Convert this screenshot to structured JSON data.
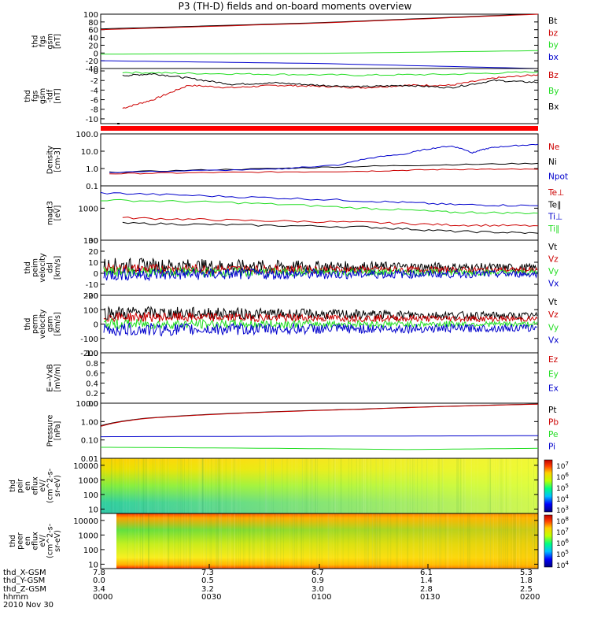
{
  "title": "P3 (TH-D) fields and on-board moments overview",
  "date_label": "2010 Nov 30",
  "colors": {
    "black": "#000000",
    "red": "#cc0000",
    "green": "#22dd22",
    "blue": "#0000cc"
  },
  "chart_data": [
    {
      "id": "fgs_gsm",
      "type": "line",
      "ylabel_lines": [
        "thd",
        "fgs",
        "gsm",
        "[nT]"
      ],
      "yticks": [
        "100",
        "80",
        "60",
        "40",
        "20",
        "0",
        "-20",
        "-40"
      ],
      "ylim": [
        -40,
        100
      ],
      "series": [
        {
          "name": "Bt",
          "color": "black",
          "points": [
            [
              0,
              62
            ],
            [
              0.5,
              78
            ],
            [
              1,
              101
            ]
          ]
        },
        {
          "name": "bz",
          "color": "red",
          "points": [
            [
              0,
              60
            ],
            [
              0.5,
              77
            ],
            [
              1,
              100
            ]
          ]
        },
        {
          "name": "by",
          "color": "green",
          "points": [
            [
              0,
              -3
            ],
            [
              0.5,
              -1
            ],
            [
              1,
              6
            ]
          ]
        },
        {
          "name": "bx",
          "color": "blue",
          "points": [
            [
              0,
              -20
            ],
            [
              0.5,
              -27
            ],
            [
              1,
              -40
            ]
          ]
        }
      ],
      "legend": [
        "Bt",
        "bz",
        "by",
        "bx"
      ]
    },
    {
      "id": "fgs_gsm_detrended",
      "type": "line",
      "ylabel_lines": [
        "thd",
        "fgs",
        "gsm",
        "-tdf",
        "[nT]"
      ],
      "yticks": [
        "0",
        "-2",
        "-4",
        "-6",
        "-8",
        "-10"
      ],
      "ylim": [
        -11,
        0.5
      ],
      "series": [
        {
          "name": "Bz",
          "color": "red",
          "points": [
            [
              0.05,
              -7.8
            ],
            [
              0.12,
              -6
            ],
            [
              0.2,
              -3
            ],
            [
              0.3,
              -3.5
            ],
            [
              0.4,
              -3
            ],
            [
              0.5,
              -3.2
            ],
            [
              0.6,
              -3.5
            ],
            [
              0.7,
              -3
            ],
            [
              0.8,
              -3
            ],
            [
              0.9,
              -1.5
            ],
            [
              1,
              -0.8
            ]
          ]
        },
        {
          "name": "By",
          "color": "green",
          "points": [
            [
              0.05,
              -0.3
            ],
            [
              0.2,
              -0.5
            ],
            [
              0.4,
              -0.7
            ],
            [
              0.6,
              -0.9
            ],
            [
              0.8,
              -0.7
            ],
            [
              1,
              -0.2
            ]
          ]
        },
        {
          "name": "Bx",
          "color": "black",
          "points": [
            [
              0.05,
              -1
            ],
            [
              0.12,
              -0.6
            ],
            [
              0.2,
              -1.5
            ],
            [
              0.3,
              -2.8
            ],
            [
              0.4,
              -2.5
            ],
            [
              0.5,
              -3
            ],
            [
              0.6,
              -3.3
            ],
            [
              0.7,
              -3
            ],
            [
              0.8,
              -3.5
            ],
            [
              0.9,
              -2
            ],
            [
              1,
              -2.4
            ]
          ]
        }
      ],
      "legend": [
        "Bz",
        "By",
        "Bx"
      ]
    },
    {
      "id": "density",
      "type": "line",
      "log": true,
      "ylabel_lines": [
        "Density",
        "[cm-3]"
      ],
      "yticks": [
        "100.0",
        "10.0",
        "1.0",
        "0.1"
      ],
      "ylim": [
        0.1,
        100
      ],
      "series": [
        {
          "name": "Ne",
          "color": "red",
          "points": [
            [
              0.02,
              0.5
            ],
            [
              0.3,
              0.6
            ],
            [
              0.6,
              0.7
            ],
            [
              0.8,
              0.9
            ],
            [
              1,
              0.9
            ]
          ]
        },
        {
          "name": "Ni",
          "color": "black",
          "points": [
            [
              0.02,
              0.6
            ],
            [
              0.4,
              1.0
            ],
            [
              0.7,
              1.5
            ],
            [
              1,
              2
            ]
          ]
        },
        {
          "name": "Npot",
          "color": "blue",
          "points": [
            [
              0.02,
              0.6
            ],
            [
              0.4,
              0.9
            ],
            [
              0.55,
              1.6
            ],
            [
              0.7,
              7
            ],
            [
              0.8,
              20
            ],
            [
              0.85,
              8
            ],
            [
              0.9,
              17
            ],
            [
              1,
              25
            ]
          ]
        }
      ],
      "legend": [
        "Ne",
        "Ni",
        "Npot"
      ]
    },
    {
      "id": "temperature",
      "type": "line",
      "log": true,
      "ylabel_lines": [
        "magt3",
        "[eV]"
      ],
      "yticks": [
        "1000",
        "100"
      ],
      "ylim": [
        100,
        5000
      ],
      "series": [
        {
          "name": "Te⊥",
          "color": "red",
          "points": [
            [
              0.05,
              500
            ],
            [
              0.3,
              420
            ],
            [
              0.6,
              360
            ],
            [
              0.8,
              300
            ],
            [
              1,
              280
            ]
          ]
        },
        {
          "name": "Te∥",
          "color": "black",
          "points": [
            [
              0.05,
              340
            ],
            [
              0.3,
              300
            ],
            [
              0.6,
              260
            ],
            [
              0.8,
              190
            ],
            [
              1,
              165
            ]
          ]
        },
        {
          "name": "Ti⊥",
          "color": "blue",
          "points": [
            [
              0,
              3000
            ],
            [
              0.3,
              2300
            ],
            [
              0.6,
              1700
            ],
            [
              0.8,
              1300
            ],
            [
              1,
              1200
            ]
          ]
        },
        {
          "name": "Ti∥",
          "color": "green",
          "points": [
            [
              0,
              1800
            ],
            [
              0.3,
              1500
            ],
            [
              0.6,
              1000
            ],
            [
              0.8,
              750
            ],
            [
              1,
              700
            ]
          ]
        }
      ],
      "legend": [
        "Te⊥",
        "Te∥",
        "Ti⊥",
        "Ti∥"
      ]
    },
    {
      "id": "peim_velocity",
      "type": "line",
      "ylabel_lines": [
        "thd",
        "peim",
        "velocity",
        "dsl",
        "[km/s]"
      ],
      "yticks": [
        "30",
        "20",
        "10",
        "0",
        "-10",
        "-20"
      ],
      "ylim": [
        -20,
        30
      ],
      "series": [
        {
          "name": "Vt",
          "color": "black",
          "level": 7,
          "amp": 6
        },
        {
          "name": "Vz",
          "color": "red",
          "level": 4,
          "amp": 4
        },
        {
          "name": "Vy",
          "color": "green",
          "level": 1,
          "amp": 4
        },
        {
          "name": "Vx",
          "color": "blue",
          "level": -1,
          "amp": 5
        }
      ],
      "legend": [
        "Vt",
        "Vz",
        "Vy",
        "Vx"
      ]
    },
    {
      "id": "perm_velocity",
      "type": "line",
      "ylabel_lines": [
        "thd",
        "perm",
        "velocity",
        "gsm",
        "[km/s]"
      ],
      "yticks": [
        "200",
        "100",
        "0",
        "-100",
        "-200"
      ],
      "ylim": [
        -200,
        200
      ],
      "series": [
        {
          "name": "Vt",
          "color": "black",
          "level": 80,
          "amp": 40
        },
        {
          "name": "Vz",
          "color": "red",
          "level": 50,
          "amp": 30
        },
        {
          "name": "Vy",
          "color": "green",
          "level": 0,
          "amp": 30
        },
        {
          "name": "Vx",
          "color": "blue",
          "level": -40,
          "amp": 40
        }
      ],
      "legend": [
        "Vt",
        "Vz",
        "Vy",
        "Vx"
      ]
    },
    {
      "id": "e_field",
      "type": "line",
      "ylabel_lines": [
        "E=-VxB",
        "[mV/m]"
      ],
      "yticks": [
        "1.0",
        "0.8",
        "0.6",
        "0.4",
        "0.2",
        "0.0"
      ],
      "ylim": [
        0,
        1
      ],
      "series": [],
      "legend": [
        "Ez",
        "Ey",
        "Ex"
      ],
      "legend_colors": [
        "red",
        "green",
        "blue"
      ]
    },
    {
      "id": "pressure",
      "type": "line",
      "log": true,
      "ylabel_lines": [
        "Pressure",
        "[nPa]"
      ],
      "yticks": [
        "10.00",
        "1.00",
        "0.10",
        "0.01"
      ],
      "ylim": [
        0.01,
        10
      ],
      "series": [
        {
          "name": "Pt",
          "color": "black",
          "points": [
            [
              0,
              0.6
            ],
            [
              0.1,
              1.5
            ],
            [
              0.3,
              2.8
            ],
            [
              0.6,
              4.8
            ],
            [
              1,
              9
            ]
          ]
        },
        {
          "name": "Pb",
          "color": "red",
          "points": [
            [
              0,
              0.55
            ],
            [
              0.1,
              1.45
            ],
            [
              0.3,
              2.7
            ],
            [
              0.6,
              4.7
            ],
            [
              1,
              8.8
            ]
          ]
        },
        {
          "name": "Pe",
          "color": "green",
          "points": [
            [
              0,
              0.04
            ],
            [
              0.4,
              0.035
            ],
            [
              0.7,
              0.03
            ],
            [
              1,
              0.035
            ]
          ]
        },
        {
          "name": "Pi",
          "color": "blue",
          "points": [
            [
              0,
              0.15
            ],
            [
              0.5,
              0.16
            ],
            [
              1,
              0.17
            ]
          ]
        }
      ],
      "legend": [
        "Pt",
        "Pb",
        "Pe",
        "Pi"
      ]
    },
    {
      "id": "peir_spec",
      "type": "heatmap",
      "ylabel_lines": [
        "thd",
        "peir",
        "en",
        "eflux",
        "eV/",
        "(cm^2-s-",
        "sr-eV)"
      ],
      "yticks": [
        "10000",
        "1000",
        "100",
        "10"
      ],
      "ylim": [
        5,
        30000
      ],
      "colorbar_ticks": [
        "10^7",
        "10^6",
        "10^5",
        "10^4",
        "10^3"
      ]
    },
    {
      "id": "peer_spec",
      "type": "heatmap",
      "ylabel_lines": [
        "thd",
        "peer",
        "en",
        "eflux",
        "eV/",
        "(cm^2-s-",
        "sr-eV)"
      ],
      "yticks": [
        "10000",
        "1000",
        "100",
        "10"
      ],
      "ylim": [
        5,
        30000
      ],
      "colorbar_ticks": [
        "10^8",
        "10^7",
        "10^6",
        "10^5",
        "10^4"
      ]
    }
  ],
  "orbit": {
    "row_labels": [
      "thd_X-GSM",
      "thd_Y-GSM",
      "thd_Z-GSM",
      "hhmm"
    ],
    "columns": [
      [
        "7.8",
        "0.0",
        "3.4",
        "0000"
      ],
      [
        "7.3",
        "0.5",
        "3.2",
        "0030"
      ],
      [
        "6.7",
        "0.9",
        "3.0",
        "0100"
      ],
      [
        "6.1",
        "1.4",
        "2.8",
        "0130"
      ],
      [
        "5.3",
        "1.8",
        "2.5",
        "0200"
      ]
    ]
  }
}
